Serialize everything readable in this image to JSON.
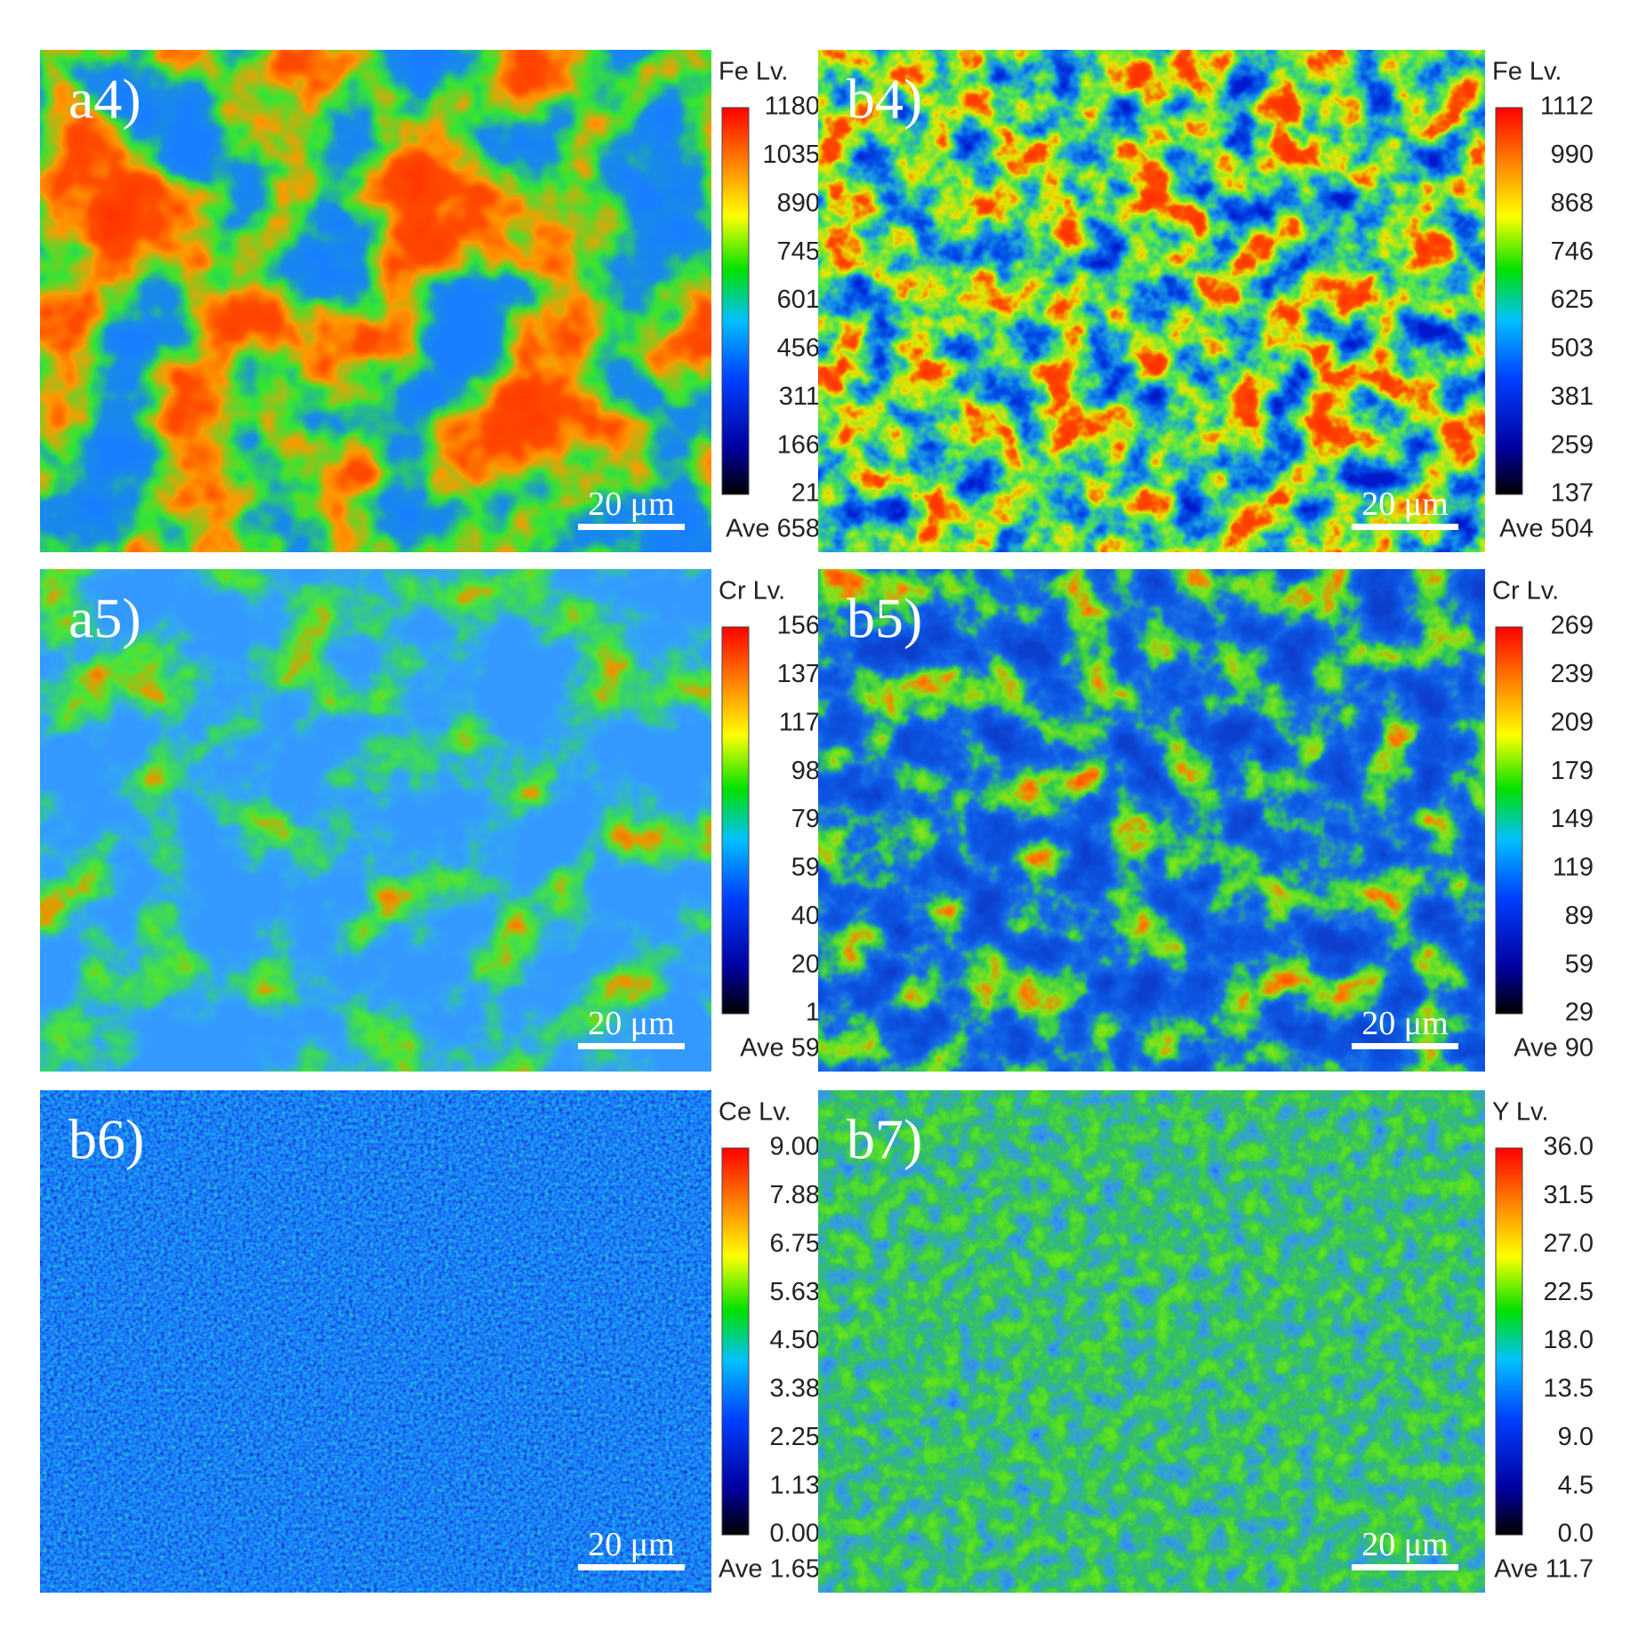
{
  "panels": [
    {
      "label": "a4)",
      "colorbar_title": "Fe  Lv.",
      "colorbar_ticks": [
        "1180",
        "1035",
        "890",
        "745",
        "601",
        "456",
        "311",
        "166",
        "21"
      ],
      "average": "Ave 658",
      "scale_bar": "20 μm"
    },
    {
      "label": "b4)",
      "colorbar_title": "Fe  Lv.",
      "colorbar_ticks": [
        "1112",
        "990",
        "868",
        "746",
        "625",
        "503",
        "381",
        "259",
        "137"
      ],
      "average": "Ave 504",
      "scale_bar": "20 μm"
    },
    {
      "label": "a5)",
      "colorbar_title": "Cr  Lv.",
      "colorbar_ticks": [
        "156",
        "137",
        "117",
        "98",
        "79",
        "59",
        "40",
        "20",
        "1"
      ],
      "average": "Ave 59",
      "scale_bar": "20 μm"
    },
    {
      "label": "b5)",
      "colorbar_title": "Cr  Lv.",
      "colorbar_ticks": [
        "269",
        "239",
        "209",
        "179",
        "149",
        "119",
        "89",
        "59",
        "29"
      ],
      "average": "Ave 90",
      "scale_bar": "20 μm"
    },
    {
      "label": "b6)",
      "colorbar_title": "Ce  Lv.",
      "colorbar_ticks": [
        "9.00",
        "7.88",
        "6.75",
        "5.63",
        "4.50",
        "3.38",
        "2.25",
        "1.13",
        "0.00"
      ],
      "average": "Ave 1.65",
      "scale_bar": "20 μm"
    },
    {
      "label": "b7)",
      "colorbar_title": "Y  Lv.",
      "colorbar_ticks": [
        "36.0",
        "31.5",
        "27.0",
        "22.5",
        "18.0",
        "13.5",
        "9.0",
        "4.5",
        "0.0"
      ],
      "average": "Ave 11.7",
      "scale_bar": "20 μm"
    }
  ]
}
